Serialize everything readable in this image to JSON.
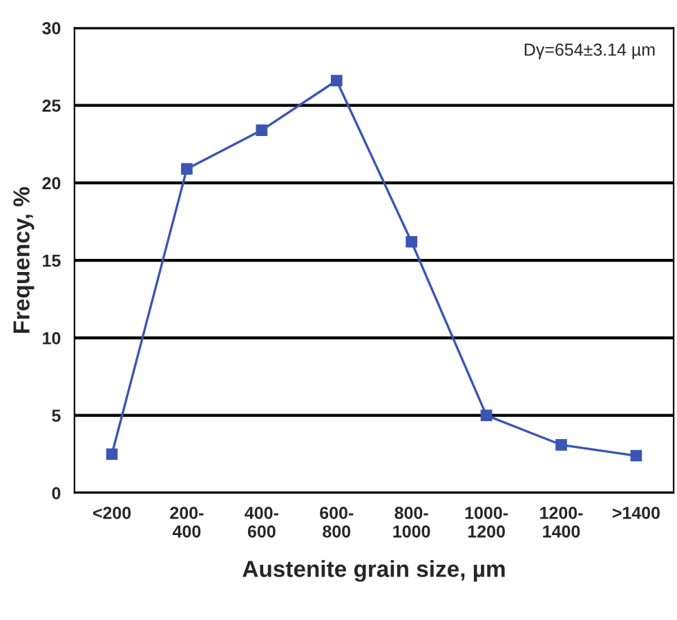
{
  "chart_data": {
    "type": "line",
    "xlabel": "Austenite grain size, µm",
    "ylabel": "Frequency, %",
    "categories": [
      "<200",
      "200-\n400",
      "400-\n600",
      "600-\n800",
      "800-\n1000",
      "1000-\n1200",
      "1200-\n1400",
      ">1400"
    ],
    "series": [
      {
        "color": "#3a55b4",
        "values": [
          2.5,
          20.9,
          23.4,
          26.6,
          16.2,
          5.0,
          3.1,
          2.4
        ]
      }
    ],
    "ylim": [
      0,
      30
    ],
    "yticks": [
      0,
      5,
      10,
      15,
      20,
      25,
      30
    ],
    "grid": "y",
    "marker": "square",
    "line_style": "solid",
    "annotations": [
      "Dγ=654±3.14 µm"
    ]
  }
}
